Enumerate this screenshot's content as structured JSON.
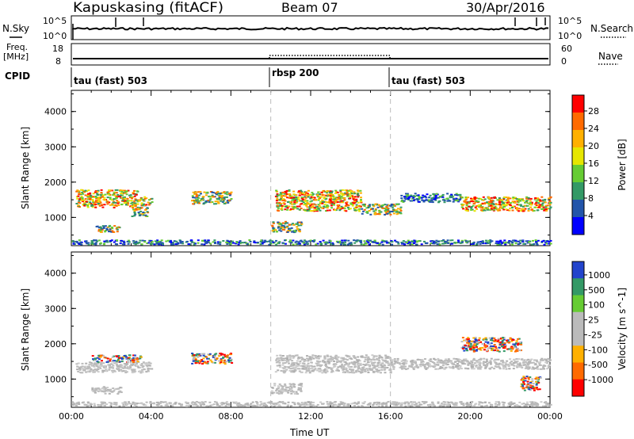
{
  "header": {
    "station": "Kapuskasing (fitACF)",
    "beam": "Beam 07",
    "date": "30/Apr/2016"
  },
  "nsky_panel": {
    "left_label": "N.Sky",
    "right_label": "N.Search",
    "left_ticks": [
      "10^5",
      "10^0"
    ],
    "right_ticks": [
      "10^5",
      "10^0"
    ]
  },
  "freq_panel": {
    "left_label_1": "Freq.",
    "left_label_2": "[MHz]",
    "right_label": "Nave",
    "left_ticks": [
      "18",
      "8"
    ],
    "right_ticks": [
      "60",
      "0"
    ]
  },
  "cpid": {
    "label": "CPID",
    "segments": [
      {
        "name": "tau (fast) 503",
        "start": 0,
        "end": 10
      },
      {
        "name": "rbsp 200",
        "start": 10,
        "end": 16
      },
      {
        "name": "tau (fast) 503",
        "start": 16,
        "end": 24
      }
    ]
  },
  "chart_data": [
    {
      "type": "heatmap",
      "parameter": "Power",
      "ylabel": "Slant Range [km]",
      "ylim": [
        200,
        4600
      ],
      "yticks": [
        "1000",
        "2000",
        "3000",
        "4000"
      ],
      "colorbar_label": "Power [dB]",
      "colorbar_ticks": [
        "28",
        "24",
        "20",
        "16",
        "12",
        "8",
        "4"
      ],
      "colorbar_colors": [
        "#ff0000",
        "#ff6a00",
        "#ffb000",
        "#e6e600",
        "#66cc33",
        "#339966",
        "#2255aa",
        "#0000ff"
      ],
      "echo_bands": [
        {
          "t0": 0.2,
          "t1": 3.3,
          "r0": 1300,
          "r1": 1800,
          "level": "high"
        },
        {
          "t0": 3.3,
          "t1": 4.0,
          "r0": 1350,
          "r1": 1600,
          "level": "high"
        },
        {
          "t0": 1.2,
          "t1": 2.4,
          "r0": 600,
          "r1": 800,
          "level": "mid"
        },
        {
          "t0": 3.0,
          "t1": 3.8,
          "r0": 1050,
          "r1": 1300,
          "level": "mid"
        },
        {
          "t0": 6.0,
          "t1": 8.0,
          "r0": 1400,
          "r1": 1750,
          "level": "mid"
        },
        {
          "t0": 10.0,
          "t1": 11.5,
          "r0": 600,
          "r1": 900,
          "level": "mid"
        },
        {
          "t0": 10.2,
          "t1": 14.5,
          "r0": 1200,
          "r1": 1800,
          "level": "high"
        },
        {
          "t0": 14.5,
          "t1": 16.5,
          "r0": 1100,
          "r1": 1400,
          "level": "mid"
        },
        {
          "t0": 16.5,
          "t1": 19.5,
          "r0": 1450,
          "r1": 1700,
          "level": "low"
        },
        {
          "t0": 19.5,
          "t1": 24.0,
          "r0": 1200,
          "r1": 1600,
          "level": "high"
        },
        {
          "t0": 0.0,
          "t1": 24.0,
          "r0": 250,
          "r1": 380,
          "level": "low"
        }
      ]
    },
    {
      "type": "heatmap",
      "parameter": "Velocity",
      "xlabel": "Time UT",
      "ylabel": "Slant Range [km]",
      "ylim": [
        200,
        4600
      ],
      "yticks": [
        "1000",
        "2000",
        "3000",
        "4000"
      ],
      "xticks": [
        "00:00",
        "04:00",
        "08:00",
        "12:00",
        "16:00",
        "20:00",
        "00:00"
      ],
      "colorbar_label": "Velocity [m s^-1]",
      "colorbar_ticks": [
        "1000",
        "500",
        "100",
        "25",
        "-25",
        "-100",
        "-500",
        "-1000"
      ],
      "colorbar_colors": [
        "#2244cc",
        "#339966",
        "#66cc33",
        "#bbbbbb",
        "#bbbbbb",
        "#ffb000",
        "#ff6a00",
        "#ff0000"
      ],
      "echo_bands": [
        {
          "t0": 0.2,
          "t1": 4.0,
          "r0": 1200,
          "r1": 1500,
          "level": "ground"
        },
        {
          "t0": 1.0,
          "t1": 3.5,
          "r0": 1500,
          "r1": 1700,
          "level": "neg"
        },
        {
          "t0": 1.0,
          "t1": 2.5,
          "r0": 600,
          "r1": 800,
          "level": "ground"
        },
        {
          "t0": 6.0,
          "t1": 8.0,
          "r0": 1450,
          "r1": 1750,
          "level": "neg"
        },
        {
          "t0": 10.0,
          "t1": 11.5,
          "r0": 600,
          "r1": 900,
          "level": "ground"
        },
        {
          "t0": 10.2,
          "t1": 16.0,
          "r0": 1200,
          "r1": 1700,
          "level": "ground"
        },
        {
          "t0": 16.0,
          "t1": 24.0,
          "r0": 1300,
          "r1": 1600,
          "level": "ground"
        },
        {
          "t0": 19.5,
          "t1": 22.5,
          "r0": 1800,
          "r1": 2200,
          "level": "neg"
        },
        {
          "t0": 22.5,
          "t1": 23.5,
          "r0": 700,
          "r1": 1100,
          "level": "neg"
        },
        {
          "t0": 0.0,
          "t1": 24.0,
          "r0": 250,
          "r1": 380,
          "level": "ground"
        }
      ]
    }
  ]
}
